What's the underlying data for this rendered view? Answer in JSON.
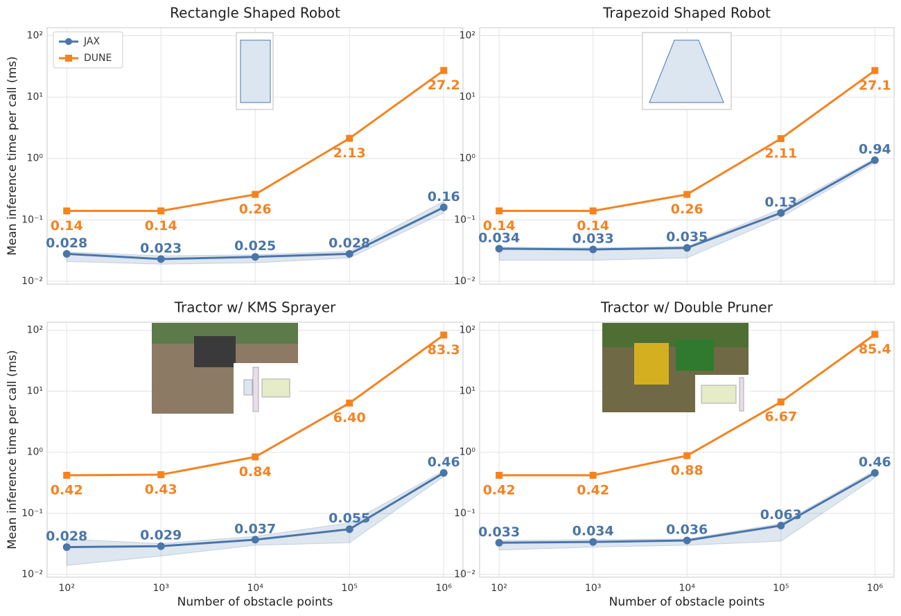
{
  "chart_data": [
    {
      "type": "line",
      "title": "Rectangle Shaped Robot",
      "ylabel": "Mean inference time per call (ms)",
      "x": [
        100,
        1000,
        10000,
        100000,
        1000000
      ],
      "xlog": true,
      "ylog": true,
      "grid": true,
      "legend": "upper left",
      "xlim": [
        62,
        1600000
      ],
      "ylim": [
        0.009,
        135
      ],
      "xticks": [
        100,
        1000,
        10000,
        100000,
        1000000
      ],
      "yticks": [
        {
          "value": 0.01,
          "label": "10⁻²"
        },
        {
          "value": 0.1,
          "label": "10⁻¹"
        },
        {
          "value": 1,
          "label": "10⁰"
        },
        {
          "value": 10,
          "label": "10¹"
        },
        {
          "value": 100,
          "label": "10²"
        }
      ],
      "series": [
        {
          "name": "JAX",
          "color": "#4a75a8",
          "marker": "circle",
          "values": [
            0.028,
            0.023,
            0.025,
            0.028,
            0.16
          ],
          "value_labels": [
            "0.028",
            "0.023",
            "0.025",
            "0.028",
            "0.16"
          ],
          "lower": [
            0.021,
            0.019,
            0.02,
            0.024,
            0.13
          ],
          "upper": [
            0.03,
            0.026,
            0.027,
            0.031,
            0.2
          ]
        },
        {
          "name": "DUNE",
          "color": "#f5821f",
          "marker": "square",
          "values": [
            0.14,
            0.14,
            0.26,
            2.13,
            27.2
          ],
          "value_labels": [
            "0.14",
            "0.14",
            "0.26",
            "2.13",
            "27.2"
          ]
        }
      ]
    },
    {
      "type": "line",
      "title": "Trapezoid Shaped Robot",
      "x": [
        100,
        1000,
        10000,
        100000,
        1000000
      ],
      "xlog": true,
      "ylog": true,
      "grid": true,
      "xlim": [
        62,
        1600000
      ],
      "ylim": [
        0.009,
        135
      ],
      "xticks": [
        100,
        1000,
        10000,
        100000,
        1000000
      ],
      "yticks": [
        {
          "value": 0.01,
          "label": "10⁻²"
        },
        {
          "value": 0.1,
          "label": "10⁻¹"
        },
        {
          "value": 1,
          "label": "10⁰"
        },
        {
          "value": 10,
          "label": "10¹"
        },
        {
          "value": 100,
          "label": "10²"
        }
      ],
      "series": [
        {
          "color": "#4a75a8",
          "marker": "circle",
          "values": [
            0.034,
            0.033,
            0.035,
            0.13,
            0.94
          ],
          "value_labels": [
            "0.034",
            "0.033",
            "0.035",
            "0.13",
            "0.94"
          ],
          "lower": [
            0.022,
            0.022,
            0.024,
            0.11,
            0.85
          ],
          "upper": [
            0.036,
            0.035,
            0.037,
            0.15,
            1.0
          ]
        },
        {
          "color": "#f5821f",
          "marker": "square",
          "values": [
            0.14,
            0.14,
            0.26,
            2.11,
            27.1
          ],
          "value_labels": [
            "0.14",
            "0.14",
            "0.26",
            "2.11",
            "27.1"
          ]
        }
      ]
    },
    {
      "type": "line",
      "title": "Tractor w/ KMS Sprayer",
      "ylabel": "Mean inference time per call (ms)",
      "xlabel": "Number of obstacle points",
      "x": [
        100,
        1000,
        10000,
        100000,
        1000000
      ],
      "xlog": true,
      "ylog": true,
      "grid": true,
      "xlim": [
        62,
        1600000
      ],
      "ylim": [
        0.009,
        135
      ],
      "xticks": [
        {
          "value": 100,
          "label": "10²"
        },
        {
          "value": 1000,
          "label": "10³"
        },
        {
          "value": 10000,
          "label": "10⁴"
        },
        {
          "value": 100000,
          "label": "10⁵"
        },
        {
          "value": 1000000,
          "label": "10⁶"
        }
      ],
      "yticks": [
        {
          "value": 0.01,
          "label": "10⁻²"
        },
        {
          "value": 0.1,
          "label": "10⁻¹"
        },
        {
          "value": 1,
          "label": "10⁰"
        },
        {
          "value": 10,
          "label": "10¹"
        },
        {
          "value": 100,
          "label": "10²"
        }
      ],
      "series": [
        {
          "color": "#4a75a8",
          "marker": "circle",
          "values": [
            0.028,
            0.029,
            0.037,
            0.055,
            0.46
          ],
          "value_labels": [
            "0.028",
            "0.029",
            "0.037",
            "0.055",
            "0.46"
          ],
          "lower": [
            0.014,
            0.02,
            0.03,
            0.033,
            0.4
          ],
          "upper": [
            0.038,
            0.032,
            0.042,
            0.07,
            0.5
          ]
        },
        {
          "color": "#f5821f",
          "marker": "square",
          "values": [
            0.42,
            0.43,
            0.84,
            6.4,
            83.3
          ],
          "value_labels": [
            "0.42",
            "0.43",
            "0.84",
            "6.40",
            "83.3"
          ]
        }
      ]
    },
    {
      "type": "line",
      "title": "Tractor w/ Double Pruner",
      "xlabel": "Number of obstacle points",
      "x": [
        100,
        1000,
        10000,
        100000,
        1000000
      ],
      "xlog": true,
      "ylog": true,
      "grid": true,
      "xlim": [
        62,
        1600000
      ],
      "ylim": [
        0.009,
        135
      ],
      "xticks": [
        {
          "value": 100,
          "label": "10²"
        },
        {
          "value": 1000,
          "label": "10³"
        },
        {
          "value": 10000,
          "label": "10⁴"
        },
        {
          "value": 100000,
          "label": "10⁵"
        },
        {
          "value": 1000000,
          "label": "10⁶"
        }
      ],
      "yticks": [
        {
          "value": 0.01,
          "label": "10⁻²"
        },
        {
          "value": 0.1,
          "label": "10⁻¹"
        },
        {
          "value": 1,
          "label": "10⁰"
        },
        {
          "value": 10,
          "label": "10¹"
        },
        {
          "value": 100,
          "label": "10²"
        }
      ],
      "series": [
        {
          "color": "#4a75a8",
          "marker": "circle",
          "values": [
            0.033,
            0.034,
            0.036,
            0.063,
            0.46
          ],
          "value_labels": [
            "0.033",
            "0.034",
            "0.036",
            "0.063",
            "0.46"
          ],
          "lower": [
            0.025,
            0.028,
            0.03,
            0.035,
            0.38
          ],
          "upper": [
            0.036,
            0.037,
            0.038,
            0.068,
            0.5
          ]
        },
        {
          "color": "#f5821f",
          "marker": "square",
          "values": [
            0.42,
            0.42,
            0.88,
            6.67,
            85.4
          ],
          "value_labels": [
            "0.42",
            "0.42",
            "0.88",
            "6.67",
            "85.4"
          ]
        }
      ]
    }
  ]
}
